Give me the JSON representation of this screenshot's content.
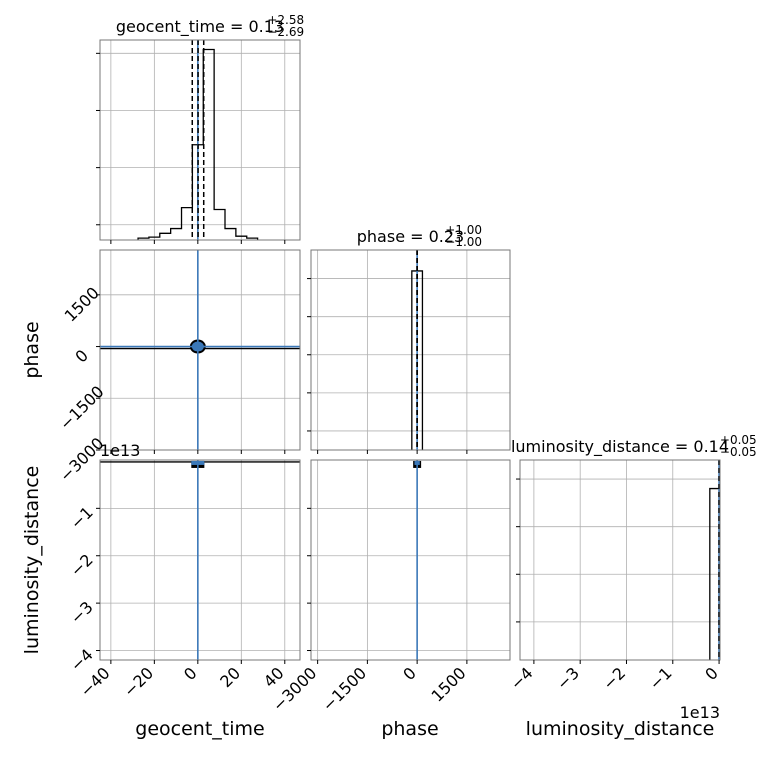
{
  "chart_data": {
    "type": "corner",
    "parameters": [
      "geocent_time",
      "phase",
      "luminosity_distance"
    ],
    "colors": {
      "truth": "#3b78b8",
      "hist": "#000000",
      "density": "#3b78b8",
      "grid": "#b0b0b0"
    },
    "diagonal": [
      {
        "parameter": "geocent_time",
        "title_main": "geocent_time = 0.13",
        "title_plus": "+2.58",
        "title_minus": "−2.69",
        "xlim": [
          -45,
          47
        ],
        "xticks": [
          -40,
          -20,
          0,
          20,
          40
        ],
        "xtick_labels": [
          "−40",
          "−20",
          "0",
          "20",
          "40"
        ],
        "yticks": [
          0.08,
          0.38,
          0.68,
          0.98
        ],
        "ymax": 1.0,
        "bin_edges": [
          -27.5,
          -22.5,
          -17.5,
          -12.5,
          -7.5,
          -2.5,
          2.5,
          7.5,
          12.5,
          17.5,
          22.5,
          27.5
        ],
        "counts": [
          0.01,
          0.015,
          0.035,
          0.06,
          0.17,
          0.5,
          1.0,
          0.16,
          0.06,
          0.02,
          0.01
        ],
        "quantiles": [
          -2.56,
          0.13,
          2.71
        ],
        "truth": 0.0
      },
      {
        "parameter": "phase",
        "title_main": "phase = 0.23",
        "title_plus": "+1.00",
        "title_minus": "−1.00",
        "xlim": [
          -3200,
          2800
        ],
        "xticks": [
          -3000,
          -1500,
          0,
          1500
        ],
        "xtick_labels": [
          "−3000",
          "−1500",
          "0",
          "1500"
        ],
        "yticks": [
          0.1,
          0.3,
          0.5,
          0.7,
          0.9
        ],
        "ymax": 1.0,
        "bin_edges": [
          -160,
          0,
          160
        ],
        "counts": [
          0.94,
          0.94
        ],
        "quantiles": [
          -0.77,
          0.23,
          1.23
        ],
        "truth": 0.0
      },
      {
        "parameter": "luminosity_distance",
        "title_main": "luminosity_distance = 0.14",
        "title_plus": "+0.05",
        "title_minus": "−0.05",
        "xlim": [
          -4.3,
          0.02
        ],
        "xticks": [
          -4,
          -3,
          -2,
          -1,
          0
        ],
        "xtick_labels": [
          "−4",
          "−3",
          "−2",
          "−1",
          "0"
        ],
        "offset_label": "1e13",
        "yticks": [
          0.2,
          0.45,
          0.7,
          0.95
        ],
        "ymax": 1.0,
        "bin_edges": [
          -0.2,
          0.0
        ],
        "counts": [
          0.9
        ],
        "quantiles": [
          0.0
        ],
        "truth": 0.0
      }
    ],
    "offdiagonal": [
      {
        "x": "geocent_time",
        "y": "phase",
        "truth_x": 0.0,
        "truth_y": 0.0
      },
      {
        "x": "geocent_time",
        "y": "luminosity_distance",
        "truth_x": 0.0,
        "truth_y": 0.0
      },
      {
        "x": "phase",
        "y": "luminosity_distance",
        "truth_x": 0.0,
        "truth_y": 0.0
      }
    ],
    "axes": {
      "phase_ylim": [
        -3000,
        2800
      ],
      "phase_yticks": [
        1500,
        0,
        -1500,
        -3000
      ],
      "phase_ytick_labels": [
        "1500",
        "0",
        "−1500",
        "−3000"
      ],
      "lumdist_ylim": [
        -4.2,
        0.02
      ],
      "lumdist_yticks": [
        -1,
        -2,
        -3,
        -4
      ],
      "lumdist_ytick_labels": [
        "−1",
        "−2",
        "−3",
        "−4"
      ],
      "lumdist_offset_label": "1e13"
    },
    "xlabels": [
      "geocent_time",
      "phase",
      "luminosity_distance"
    ],
    "ylabels": [
      "phase",
      "luminosity_distance"
    ]
  }
}
